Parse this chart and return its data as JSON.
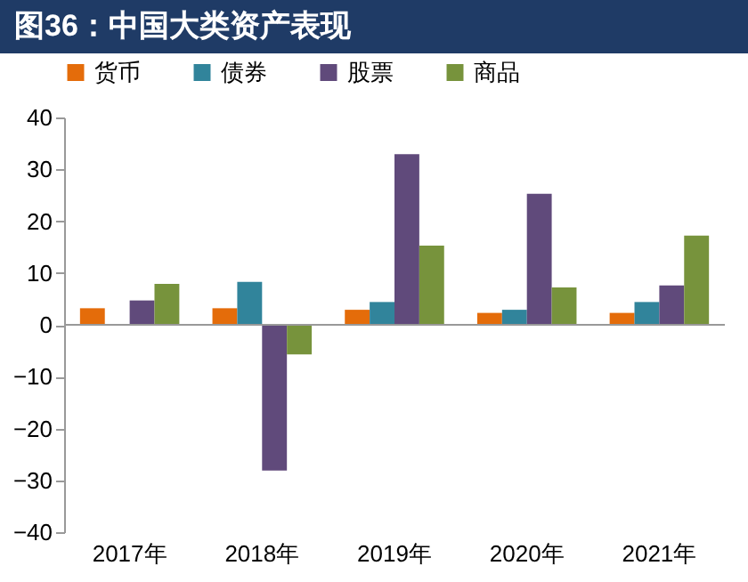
{
  "chart_data": {
    "type": "bar",
    "title": "图36：中国大类资产表现",
    "categories": [
      "2017年",
      "2018年",
      "2019年",
      "2020年",
      "2021年"
    ],
    "series": [
      {
        "name": "货币",
        "color": "#e46c0a",
        "values": [
          3.2,
          3.2,
          2.9,
          2.3,
          2.3
        ]
      },
      {
        "name": "债券",
        "color": "#31849b",
        "values": [
          null,
          8.3,
          4.4,
          2.9,
          4.4
        ]
      },
      {
        "name": "股票",
        "color": "#604a7b",
        "values": [
          4.7,
          -28.1,
          32.9,
          25.3,
          7.6
        ]
      },
      {
        "name": "商品",
        "color": "#77933c",
        "values": [
          7.9,
          -5.7,
          15.3,
          7.2,
          17.2
        ]
      }
    ],
    "ylim": [
      -40,
      40
    ],
    "yticks": [
      -40,
      -30,
      -20,
      -10,
      0,
      10,
      20,
      30,
      40
    ],
    "grid": false,
    "legend": "top",
    "ref_lines": [
      {
        "axis": "y",
        "value": 0,
        "color": "#999999"
      }
    ]
  }
}
